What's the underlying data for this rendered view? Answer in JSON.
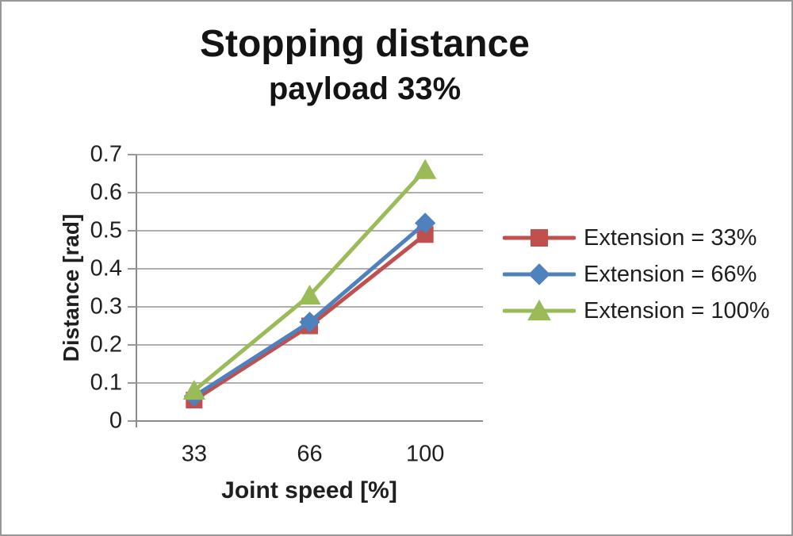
{
  "chart_data": {
    "type": "line",
    "title": "Stopping distance",
    "subtitle": "payload 33%",
    "xlabel": "Joint speed [%]",
    "ylabel": "Distance [rad]",
    "categories": [
      "33",
      "66",
      "100"
    ],
    "series": [
      {
        "name": "Extension = 33%",
        "color": "#C0504D",
        "marker": "square",
        "values": [
          0.055,
          0.25,
          0.49
        ]
      },
      {
        "name": "Extension = 66%",
        "color": "#4F81BD",
        "marker": "diamond",
        "values": [
          0.065,
          0.26,
          0.52
        ]
      },
      {
        "name": "Extension = 100%",
        "color": "#9BBB59",
        "marker": "triangle",
        "values": [
          0.08,
          0.33,
          0.66
        ]
      }
    ],
    "y_ticks": [
      "0",
      "0.1",
      "0.2",
      "0.3",
      "0.4",
      "0.5",
      "0.6",
      "0.7"
    ],
    "ylim": [
      0,
      0.7
    ],
    "grid": true,
    "legend_position": "right",
    "colors": {
      "grid": "#a3a3a3",
      "axis": "#8c8c8c",
      "text": "#1f1f1f",
      "background": "#ffffff",
      "frame_border": "#979797"
    }
  }
}
